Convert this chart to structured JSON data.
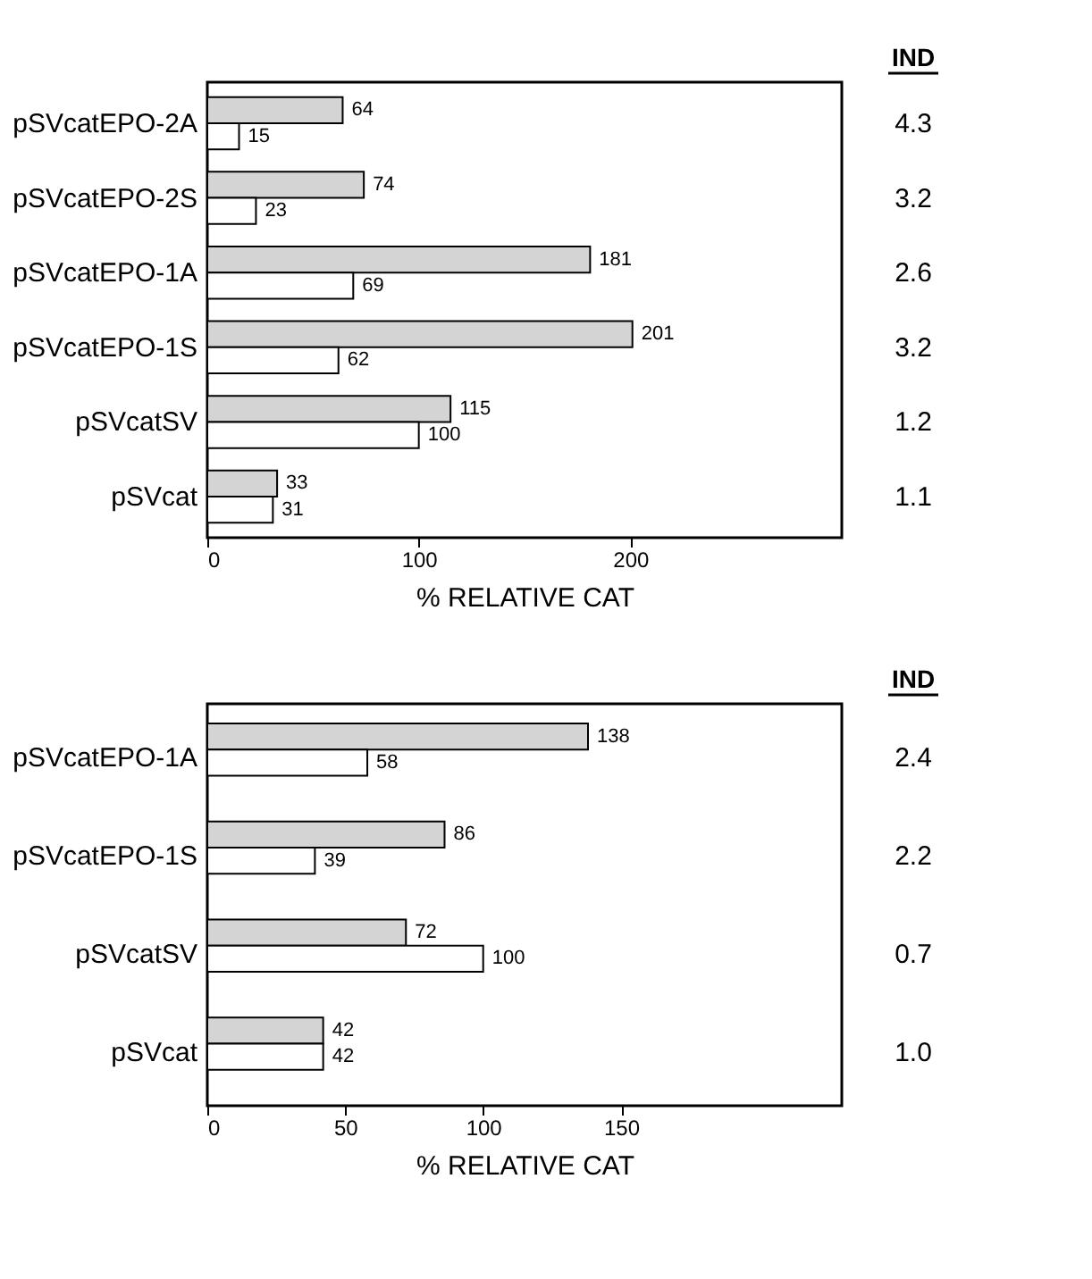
{
  "chart_data": [
    {
      "type": "bar",
      "orientation": "horizontal",
      "categories": [
        "pSVcatEPO-2A",
        "pSVcatEPO-2S",
        "pSVcatEPO-1A",
        "pSVcatEPO-1S",
        "pSVcatSV",
        "pSVcat"
      ],
      "series": [
        {
          "color": "#d4d4d4",
          "values": [
            64,
            74,
            181,
            201,
            115,
            33
          ]
        },
        {
          "color": "#ffffff",
          "values": [
            15,
            23,
            69,
            62,
            100,
            31
          ]
        }
      ],
      "xlim": [
        0,
        300
      ],
      "xticks": [
        0,
        100,
        200
      ],
      "xlabel": "% RELATIVE CAT",
      "data_labels": true,
      "grid": false,
      "legend": false,
      "annotations": [
        "IND",
        "4.3",
        "3.2",
        "2.6",
        "3.2",
        "1.2",
        "1.1"
      ]
    },
    {
      "type": "bar",
      "orientation": "horizontal",
      "categories": [
        "pSVcatEPO-1A",
        "pSVcatEPO-1S",
        "pSVcatSV",
        "pSVcat"
      ],
      "series": [
        {
          "color": "#d4d4d4",
          "values": [
            138,
            86,
            72,
            42
          ]
        },
        {
          "color": "#ffffff",
          "values": [
            58,
            39,
            100,
            42
          ]
        }
      ],
      "xlim": [
        0,
        230
      ],
      "xticks": [
        0,
        50,
        100,
        150
      ],
      "xlabel": "% RELATIVE CAT",
      "data_labels": true,
      "grid": false,
      "legend": false,
      "annotations": [
        "IND",
        "2.4",
        "2.2",
        "0.7",
        "1.0"
      ]
    }
  ]
}
